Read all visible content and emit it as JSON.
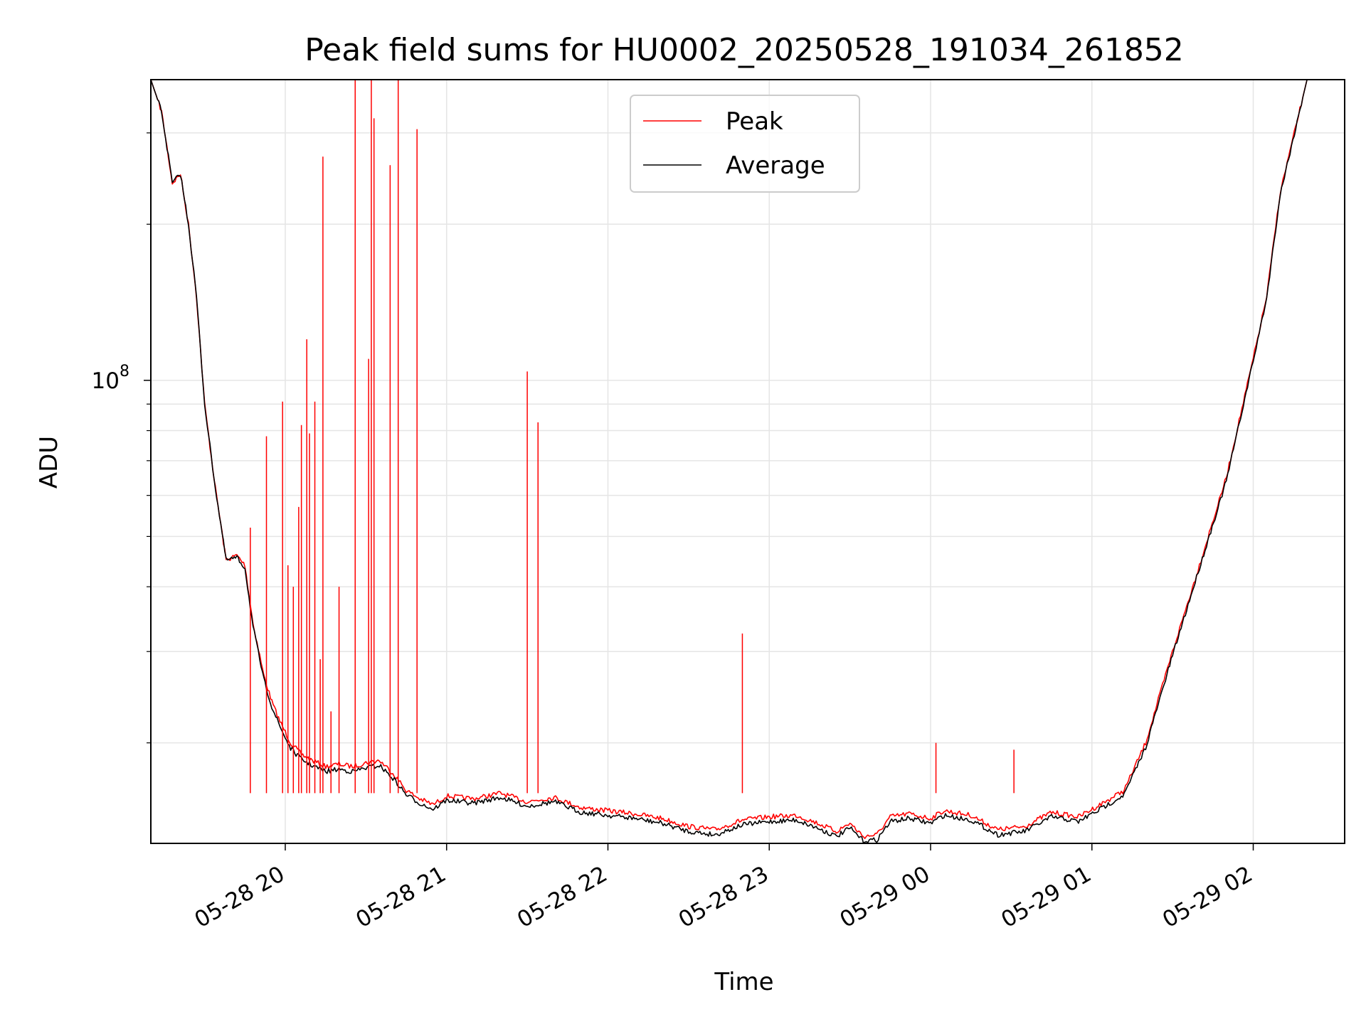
{
  "chart_data": {
    "type": "line",
    "title": "Peak field sums for HU0002_20250528_191034_261852",
    "xlabel": "Time",
    "ylabel": "ADU",
    "y_scale": "log",
    "ylim": [
      12800000,
      380000000
    ],
    "xlim": [
      "2025-05-28 19:10",
      "2025-05-29 02:34"
    ],
    "x_ticks": [
      "05-28 20",
      "05-28 21",
      "05-28 22",
      "05-28 23",
      "05-29 00",
      "05-29 01",
      "05-29 02"
    ],
    "y_tick_major": {
      "base": "10",
      "exponent": "8"
    },
    "grid": true,
    "legend_position": "top-center",
    "series": [
      {
        "name": "Peak",
        "color": "#ff0000",
        "x": [
          "2025-05-28 19:10",
          "2025-05-28 19:14",
          "2025-05-28 19:18",
          "2025-05-28 19:21",
          "2025-05-28 19:24",
          "2025-05-28 19:27",
          "2025-05-28 19:30",
          "2025-05-28 19:34",
          "2025-05-28 19:38",
          "2025-05-28 19:42",
          "2025-05-28 19:45",
          "2025-05-28 19:48",
          "2025-05-28 19:52",
          "2025-05-28 19:55",
          "2025-05-28 19:58",
          "2025-05-28 20:02",
          "2025-05-28 20:06",
          "2025-05-28 20:10",
          "2025-05-28 20:15",
          "2025-05-28 20:20",
          "2025-05-28 20:25",
          "2025-05-28 20:30",
          "2025-05-28 20:35",
          "2025-05-28 20:40",
          "2025-05-28 20:45",
          "2025-05-28 20:50",
          "2025-05-28 20:55",
          "2025-05-28 21:00",
          "2025-05-28 21:10",
          "2025-05-28 21:20",
          "2025-05-28 21:30",
          "2025-05-28 21:40",
          "2025-05-28 21:50",
          "2025-05-28 22:00",
          "2025-05-28 22:10",
          "2025-05-28 22:20",
          "2025-05-28 22:30",
          "2025-05-28 22:40",
          "2025-05-28 22:50",
          "2025-05-28 23:00",
          "2025-05-28 23:10",
          "2025-05-28 23:18",
          "2025-05-28 23:25",
          "2025-05-28 23:30",
          "2025-05-28 23:35",
          "2025-05-28 23:40",
          "2025-05-28 23:45",
          "2025-05-28 23:52",
          "2025-05-29 00:00",
          "2025-05-29 00:05",
          "2025-05-29 00:15",
          "2025-05-29 00:25",
          "2025-05-29 00:35",
          "2025-05-29 00:45",
          "2025-05-29 00:55",
          "2025-05-29 01:05",
          "2025-05-29 01:12",
          "2025-05-29 01:20",
          "2025-05-29 01:30",
          "2025-05-29 01:40",
          "2025-05-29 01:50",
          "2025-05-29 02:00",
          "2025-05-29 02:05",
          "2025-05-29 02:10",
          "2025-05-29 02:20",
          "2025-05-29 02:34"
        ],
        "y": [
          380000000,
          330000000,
          240000000,
          250000000,
          200000000,
          145000000,
          90000000,
          62000000,
          45000000,
          46000000,
          44000000,
          34000000,
          27000000,
          24000000,
          22000000,
          20000000,
          19000000,
          18500000,
          18000000,
          18200000,
          18000000,
          18300000,
          18500000,
          17500000,
          16200000,
          15600000,
          15200000,
          15800000,
          15600000,
          16000000,
          15400000,
          15700000,
          15000000,
          14800000,
          14600000,
          14300000,
          13800000,
          13600000,
          14200000,
          14400000,
          14500000,
          14000000,
          13500000,
          14000000,
          13200000,
          13300000,
          14400000,
          14600000,
          14300000,
          14800000,
          14500000,
          13600000,
          13800000,
          14700000,
          14400000,
          15400000,
          16200000,
          20000000,
          30000000,
          44000000,
          65000000,
          110000000,
          145000000,
          230000000,
          380000000,
          380000000
        ]
      },
      {
        "name": "Average",
        "color": "#000000",
        "x": [
          "2025-05-28 19:10",
          "2025-05-28 19:14",
          "2025-05-28 19:18",
          "2025-05-28 19:21",
          "2025-05-28 19:24",
          "2025-05-28 19:27",
          "2025-05-28 19:30",
          "2025-05-28 19:34",
          "2025-05-28 19:38",
          "2025-05-28 19:42",
          "2025-05-28 19:45",
          "2025-05-28 19:48",
          "2025-05-28 19:52",
          "2025-05-28 19:55",
          "2025-05-28 19:58",
          "2025-05-28 20:02",
          "2025-05-28 20:06",
          "2025-05-28 20:10",
          "2025-05-28 20:15",
          "2025-05-28 20:20",
          "2025-05-28 20:25",
          "2025-05-28 20:30",
          "2025-05-28 20:35",
          "2025-05-28 20:40",
          "2025-05-28 20:45",
          "2025-05-28 20:50",
          "2025-05-28 20:55",
          "2025-05-28 21:00",
          "2025-05-28 21:10",
          "2025-05-28 21:20",
          "2025-05-28 21:30",
          "2025-05-28 21:40",
          "2025-05-28 21:50",
          "2025-05-28 22:00",
          "2025-05-28 22:10",
          "2025-05-28 22:20",
          "2025-05-28 22:30",
          "2025-05-28 22:40",
          "2025-05-28 22:50",
          "2025-05-28 23:00",
          "2025-05-28 23:10",
          "2025-05-28 23:18",
          "2025-05-28 23:25",
          "2025-05-28 23:30",
          "2025-05-28 23:35",
          "2025-05-28 23:40",
          "2025-05-28 23:45",
          "2025-05-28 23:52",
          "2025-05-29 00:00",
          "2025-05-29 00:05",
          "2025-05-29 00:15",
          "2025-05-29 00:25",
          "2025-05-29 00:35",
          "2025-05-29 00:45",
          "2025-05-29 00:55",
          "2025-05-29 01:05",
          "2025-05-29 01:12",
          "2025-05-29 01:20",
          "2025-05-29 01:30",
          "2025-05-29 01:40",
          "2025-05-29 01:50",
          "2025-05-29 02:00",
          "2025-05-29 02:05",
          "2025-05-29 02:10",
          "2025-05-29 02:20",
          "2025-05-29 02:34"
        ],
        "y": [
          380000000,
          330000000,
          240000000,
          250000000,
          200000000,
          145000000,
          90000000,
          62000000,
          45000000,
          45500000,
          43500000,
          33500000,
          26500000,
          23500000,
          21500000,
          19500000,
          18600000,
          18100000,
          17600000,
          17800000,
          17600000,
          17900000,
          18100000,
          17100000,
          15900000,
          15300000,
          14900000,
          15500000,
          15300000,
          15700000,
          15100000,
          15400000,
          14700000,
          14500000,
          14300000,
          14000000,
          13500000,
          13300000,
          13900000,
          14100000,
          14200000,
          13700000,
          13200000,
          13700000,
          12950000,
          13000000,
          14100000,
          14300000,
          14000000,
          14500000,
          14200000,
          13300000,
          13500000,
          14400000,
          14100000,
          15100000,
          15900000,
          19600000,
          29500000,
          43500000,
          64000000,
          109000000,
          144000000,
          228000000,
          380000000,
          380000000
        ]
      }
    ],
    "spikes": {
      "x": [
        "2025-05-28 19:47",
        "2025-05-28 19:53",
        "2025-05-28 19:59",
        "2025-05-28 20:01",
        "2025-05-28 20:03",
        "2025-05-28 20:05",
        "2025-05-28 20:06",
        "2025-05-28 20:08",
        "2025-05-28 20:09",
        "2025-05-28 20:11",
        "2025-05-28 20:13",
        "2025-05-28 20:14",
        "2025-05-28 20:17",
        "2025-05-28 20:20",
        "2025-05-28 20:26",
        "2025-05-28 20:31",
        "2025-05-28 20:32",
        "2025-05-28 20:33",
        "2025-05-28 20:39",
        "2025-05-28 20:42",
        "2025-05-28 20:49",
        "2025-05-28 21:30",
        "2025-05-28 21:34",
        "2025-05-28 22:50",
        "2025-05-29 00:02",
        "2025-05-29 00:31"
      ],
      "y": [
        52000000,
        78000000,
        91000000,
        44000000,
        40000000,
        57000000,
        82000000,
        120000000,
        79000000,
        91000000,
        29000000,
        270000000,
        23000000,
        40000000,
        380000000,
        110000000,
        380000000,
        320000000,
        260000000,
        380000000,
        305000000,
        104000000,
        83000000,
        32500000,
        20000000,
        19400000
      ]
    }
  }
}
